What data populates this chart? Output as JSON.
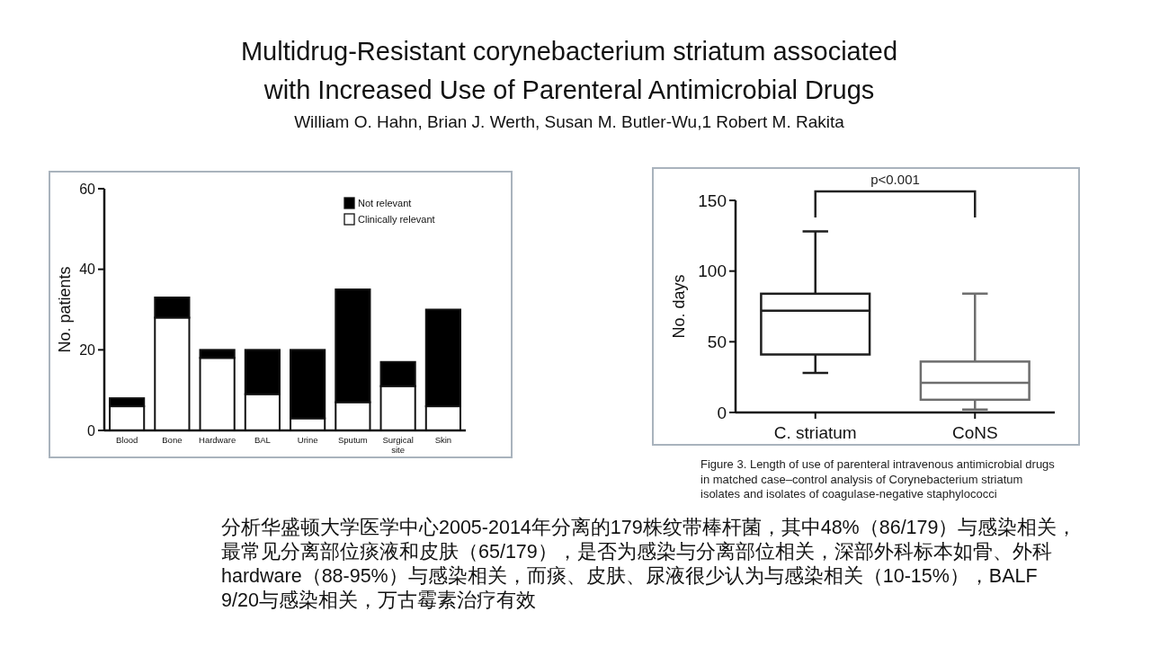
{
  "chart_data": [
    {
      "type": "other",
      "title": "Multidrug-Resistant corynebacterium striatum associated with Increased Use of Parenteral Antimicrobial Drugs",
      "subtitle": "William O. Hahn, Brian J. Werth, Susan M. Butler-Wu,1 Robert M. Rakita",
      "annotations": [
        "分析华盛顿大学医学中心2005-2014年分离的179株纹带棒杆菌，其中48%（86/179）与感染相关，最常见分离部位痰液和皮肤（65/179），是否为感染与分离部位相关，深部外科标本如骨、外科hardware（88-95%）与感染相关，而痰、皮肤、尿液很少认为与感染相关（10-15%），BALF 9/20与感染相关，万古霉素治疗有效"
      ]
    },
    {
      "type": "bar",
      "ylabel": "No. patients",
      "categories": [
        "Blood",
        "Bone",
        "Hardware",
        "BAL",
        "Urine",
        "Sputum",
        "Surgical site",
        "Skin"
      ],
      "stacked": true,
      "series": [
        {
          "name": "Clinically relevant",
          "color": "#ffffff",
          "values": [
            6,
            28,
            18,
            9,
            3,
            7,
            11,
            6
          ]
        },
        {
          "name": "Not relevant",
          "color": "#000000",
          "values": [
            2,
            5,
            2,
            11,
            17,
            28,
            6,
            24
          ]
        }
      ],
      "ylim": [
        0,
        60
      ],
      "yticks": [
        0,
        20,
        40,
        60
      ],
      "legend": "top right"
    },
    {
      "type": "box",
      "ylabel": "No. days",
      "categories": [
        "C. striatum",
        "CoNS"
      ],
      "boxes": [
        {
          "low": 28,
          "q1": 41,
          "median": 72,
          "q3": 84,
          "high": 128
        },
        {
          "low": 2,
          "q1": 9,
          "median": 21,
          "q3": 36,
          "high": 84
        }
      ],
      "colors": [
        "#1e1e1e",
        "#6e6e6e"
      ],
      "ylim": [
        0,
        150
      ],
      "yticks": [
        0,
        50,
        100,
        150
      ],
      "annotations": [
        "p<0.001",
        "Figure 3. Length of use of parenteral intravenous antimicrobial drugs in matched case–control analysis of Corynebacterium striatum isolates and isolates of coagulase-negative staphylococci"
      ]
    }
  ]
}
